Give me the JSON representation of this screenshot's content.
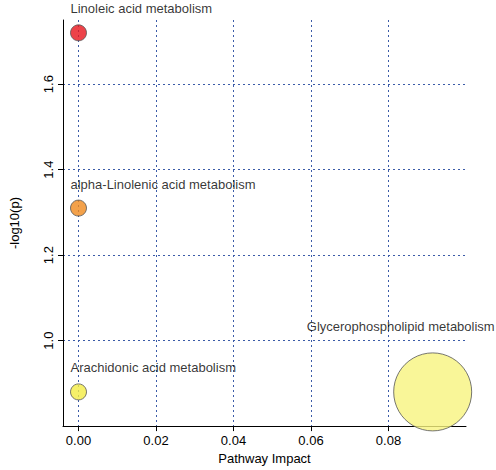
{
  "chart_data": {
    "type": "scatter",
    "x_label": "Pathway Impact",
    "y_label": "-log10(p)",
    "names": [
      "Linoleic acid metabolism",
      "alpha-Linolenic acid metabolism",
      "Arachidonic acid metabolism",
      "Glycerophospholipid metabolism"
    ],
    "x": [
      0,
      0,
      0,
      0.0914
    ],
    "values": [
      1.72,
      1.31,
      0.88,
      0.88
    ],
    "colors": [
      "#e8141b",
      "#f08a1d",
      "#f4ec44",
      "#f8f47e"
    ],
    "xlim": [
      -0.004,
      0.1
    ],
    "ylim": [
      0.8,
      1.75
    ],
    "xticks": [
      {
        "value": 0,
        "label": "0.00"
      },
      {
        "value": 0.02,
        "label": "0.02"
      },
      {
        "value": 0.04,
        "label": "0.04"
      },
      {
        "value": 0.06,
        "label": "0.06"
      },
      {
        "value": 0.08,
        "label": "0.08"
      }
    ],
    "yticks": [
      {
        "value": 1,
        "label": "1.0"
      },
      {
        "value": 1.2,
        "label": "1.2"
      },
      {
        "value": 1.4,
        "label": "1.4"
      },
      {
        "value": 1.6,
        "label": "1.6"
      }
    ],
    "grid": true
  }
}
